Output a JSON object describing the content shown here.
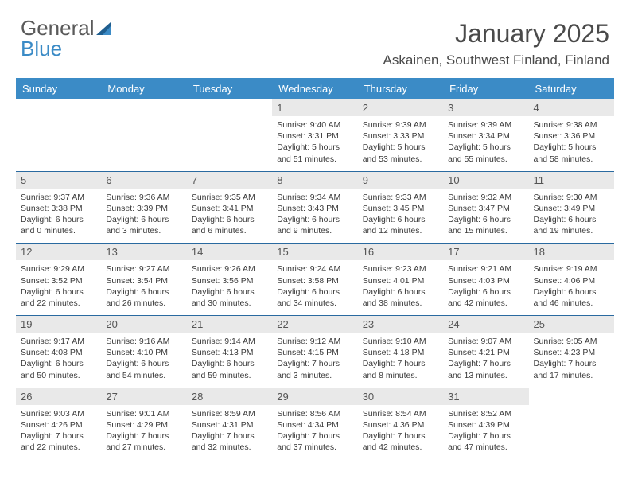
{
  "brand": {
    "line1": "General",
    "line2": "Blue"
  },
  "title": "January 2025",
  "subtitle": "Askainen, Southwest Finland, Finland",
  "colors": {
    "header_bg": "#3b8bc6",
    "header_fg": "#ffffff",
    "daynum_bg": "#e9e9e9",
    "rule": "#2a6aa0",
    "text": "#3a3a3a"
  },
  "day_headers": [
    "Sunday",
    "Monday",
    "Tuesday",
    "Wednesday",
    "Thursday",
    "Friday",
    "Saturday"
  ],
  "weeks": [
    [
      {
        "num": "",
        "empty": true
      },
      {
        "num": "",
        "empty": true
      },
      {
        "num": "",
        "empty": true
      },
      {
        "num": "1",
        "sunrise": "9:40 AM",
        "sunset": "3:31 PM",
        "daylight": "5 hours and 51 minutes."
      },
      {
        "num": "2",
        "sunrise": "9:39 AM",
        "sunset": "3:33 PM",
        "daylight": "5 hours and 53 minutes."
      },
      {
        "num": "3",
        "sunrise": "9:39 AM",
        "sunset": "3:34 PM",
        "daylight": "5 hours and 55 minutes."
      },
      {
        "num": "4",
        "sunrise": "9:38 AM",
        "sunset": "3:36 PM",
        "daylight": "5 hours and 58 minutes."
      }
    ],
    [
      {
        "num": "5",
        "sunrise": "9:37 AM",
        "sunset": "3:38 PM",
        "daylight": "6 hours and 0 minutes."
      },
      {
        "num": "6",
        "sunrise": "9:36 AM",
        "sunset": "3:39 PM",
        "daylight": "6 hours and 3 minutes."
      },
      {
        "num": "7",
        "sunrise": "9:35 AM",
        "sunset": "3:41 PM",
        "daylight": "6 hours and 6 minutes."
      },
      {
        "num": "8",
        "sunrise": "9:34 AM",
        "sunset": "3:43 PM",
        "daylight": "6 hours and 9 minutes."
      },
      {
        "num": "9",
        "sunrise": "9:33 AM",
        "sunset": "3:45 PM",
        "daylight": "6 hours and 12 minutes."
      },
      {
        "num": "10",
        "sunrise": "9:32 AM",
        "sunset": "3:47 PM",
        "daylight": "6 hours and 15 minutes."
      },
      {
        "num": "11",
        "sunrise": "9:30 AM",
        "sunset": "3:49 PM",
        "daylight": "6 hours and 19 minutes."
      }
    ],
    [
      {
        "num": "12",
        "sunrise": "9:29 AM",
        "sunset": "3:52 PM",
        "daylight": "6 hours and 22 minutes."
      },
      {
        "num": "13",
        "sunrise": "9:27 AM",
        "sunset": "3:54 PM",
        "daylight": "6 hours and 26 minutes."
      },
      {
        "num": "14",
        "sunrise": "9:26 AM",
        "sunset": "3:56 PM",
        "daylight": "6 hours and 30 minutes."
      },
      {
        "num": "15",
        "sunrise": "9:24 AM",
        "sunset": "3:58 PM",
        "daylight": "6 hours and 34 minutes."
      },
      {
        "num": "16",
        "sunrise": "9:23 AM",
        "sunset": "4:01 PM",
        "daylight": "6 hours and 38 minutes."
      },
      {
        "num": "17",
        "sunrise": "9:21 AM",
        "sunset": "4:03 PM",
        "daylight": "6 hours and 42 minutes."
      },
      {
        "num": "18",
        "sunrise": "9:19 AM",
        "sunset": "4:06 PM",
        "daylight": "6 hours and 46 minutes."
      }
    ],
    [
      {
        "num": "19",
        "sunrise": "9:17 AM",
        "sunset": "4:08 PM",
        "daylight": "6 hours and 50 minutes."
      },
      {
        "num": "20",
        "sunrise": "9:16 AM",
        "sunset": "4:10 PM",
        "daylight": "6 hours and 54 minutes."
      },
      {
        "num": "21",
        "sunrise": "9:14 AM",
        "sunset": "4:13 PM",
        "daylight": "6 hours and 59 minutes."
      },
      {
        "num": "22",
        "sunrise": "9:12 AM",
        "sunset": "4:15 PM",
        "daylight": "7 hours and 3 minutes."
      },
      {
        "num": "23",
        "sunrise": "9:10 AM",
        "sunset": "4:18 PM",
        "daylight": "7 hours and 8 minutes."
      },
      {
        "num": "24",
        "sunrise": "9:07 AM",
        "sunset": "4:21 PM",
        "daylight": "7 hours and 13 minutes."
      },
      {
        "num": "25",
        "sunrise": "9:05 AM",
        "sunset": "4:23 PM",
        "daylight": "7 hours and 17 minutes."
      }
    ],
    [
      {
        "num": "26",
        "sunrise": "9:03 AM",
        "sunset": "4:26 PM",
        "daylight": "7 hours and 22 minutes."
      },
      {
        "num": "27",
        "sunrise": "9:01 AM",
        "sunset": "4:29 PM",
        "daylight": "7 hours and 27 minutes."
      },
      {
        "num": "28",
        "sunrise": "8:59 AM",
        "sunset": "4:31 PM",
        "daylight": "7 hours and 32 minutes."
      },
      {
        "num": "29",
        "sunrise": "8:56 AM",
        "sunset": "4:34 PM",
        "daylight": "7 hours and 37 minutes."
      },
      {
        "num": "30",
        "sunrise": "8:54 AM",
        "sunset": "4:36 PM",
        "daylight": "7 hours and 42 minutes."
      },
      {
        "num": "31",
        "sunrise": "8:52 AM",
        "sunset": "4:39 PM",
        "daylight": "7 hours and 47 minutes."
      },
      {
        "num": "",
        "empty": true
      }
    ]
  ],
  "labels": {
    "sunrise": "Sunrise:",
    "sunset": "Sunset:",
    "daylight": "Daylight:"
  }
}
